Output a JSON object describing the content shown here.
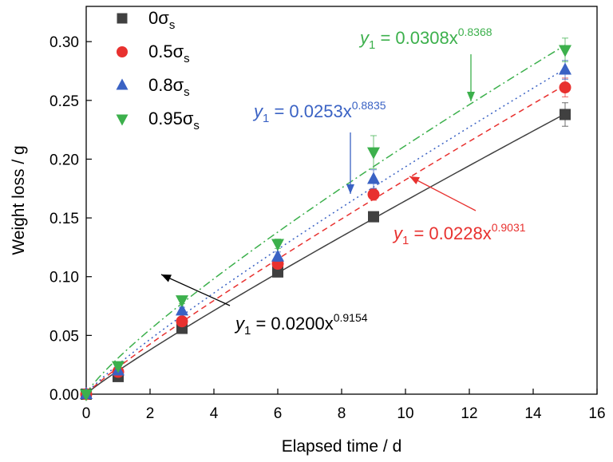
{
  "chart_data": {
    "type": "scatter",
    "xlabel": "Elapsed time / d",
    "ylabel": "Weight loss / g",
    "xlim": [
      0,
      16
    ],
    "ylim": [
      0,
      0.33
    ],
    "xticks": [
      0,
      2,
      4,
      6,
      8,
      10,
      12,
      14,
      16
    ],
    "yticks": [
      0.0,
      0.05,
      0.1,
      0.15,
      0.2,
      0.25,
      0.3
    ],
    "xtick_labels": [
      "0",
      "2",
      "4",
      "6",
      "8",
      "10",
      "12",
      "14",
      "16"
    ],
    "ytick_labels": [
      "0.00",
      "0.05",
      "0.10",
      "0.15",
      "0.20",
      "0.25",
      "0.30"
    ],
    "grid": false,
    "legend_position": "top-left",
    "series": [
      {
        "name": "0σs",
        "legend_main": "0σ",
        "legend_sub": "s",
        "marker": "square",
        "color": "#404040",
        "line_style": "solid",
        "x": [
          0,
          1,
          3,
          6,
          9,
          15
        ],
        "y": [
          0.0,
          0.015,
          0.056,
          0.104,
          0.151,
          0.238
        ],
        "yerr": [
          0,
          0.002,
          0.002,
          0.003,
          0.003,
          0.01
        ],
        "fit": {
          "a": 0.02,
          "b": 0.9154
        },
        "eq_text_prefix": "y",
        "eq_text_sub": "1",
        "eq_text_mid": " = 0.0200x",
        "eq_text_exp": "0.9154"
      },
      {
        "name": "0.5σs",
        "legend_main": "0.5σ",
        "legend_sub": "s",
        "marker": "circle",
        "color": "#e8312f",
        "line_style": "dashed",
        "x": [
          0,
          1,
          3,
          6,
          9,
          15
        ],
        "y": [
          0.0,
          0.019,
          0.062,
          0.111,
          0.17,
          0.261
        ],
        "yerr": [
          0,
          0.002,
          0.002,
          0.003,
          0.005,
          0.008
        ],
        "fit": {
          "a": 0.0228,
          "b": 0.9031
        },
        "eq_text_prefix": "y",
        "eq_text_sub": "1",
        "eq_text_mid": " = 0.0228x",
        "eq_text_exp": "0.9031"
      },
      {
        "name": "0.8σs",
        "legend_main": "0.8σ",
        "legend_sub": "s",
        "marker": "triangle-up",
        "color": "#3a62c4",
        "line_style": "dotted",
        "x": [
          0,
          1,
          3,
          6,
          9,
          15
        ],
        "y": [
          0.0,
          0.02,
          0.071,
          0.117,
          0.183,
          0.276
        ],
        "yerr": [
          0,
          0.002,
          0.003,
          0.004,
          0.008,
          0.008
        ],
        "fit": {
          "a": 0.0253,
          "b": 0.8835
        },
        "eq_text_prefix": "y",
        "eq_text_sub": "1",
        "eq_text_mid": " = 0.0253x",
        "eq_text_exp": "0.8835"
      },
      {
        "name": "0.95σs",
        "legend_main": "0.95σ",
        "legend_sub": "s",
        "marker": "triangle-down",
        "color": "#3cb04c",
        "line_style": "dashdot",
        "x": [
          0,
          1,
          3,
          6,
          9,
          15
        ],
        "y": [
          0.0,
          0.024,
          0.08,
          0.128,
          0.206,
          0.293
        ],
        "yerr": [
          0,
          0.002,
          0.003,
          0.004,
          0.014,
          0.01
        ],
        "fit": {
          "a": 0.0308,
          "b": 0.8368
        },
        "eq_text_prefix": "y",
        "eq_text_sub": "1",
        "eq_text_mid": " = 0.0308x",
        "eq_text_exp": "0.8368"
      }
    ]
  }
}
